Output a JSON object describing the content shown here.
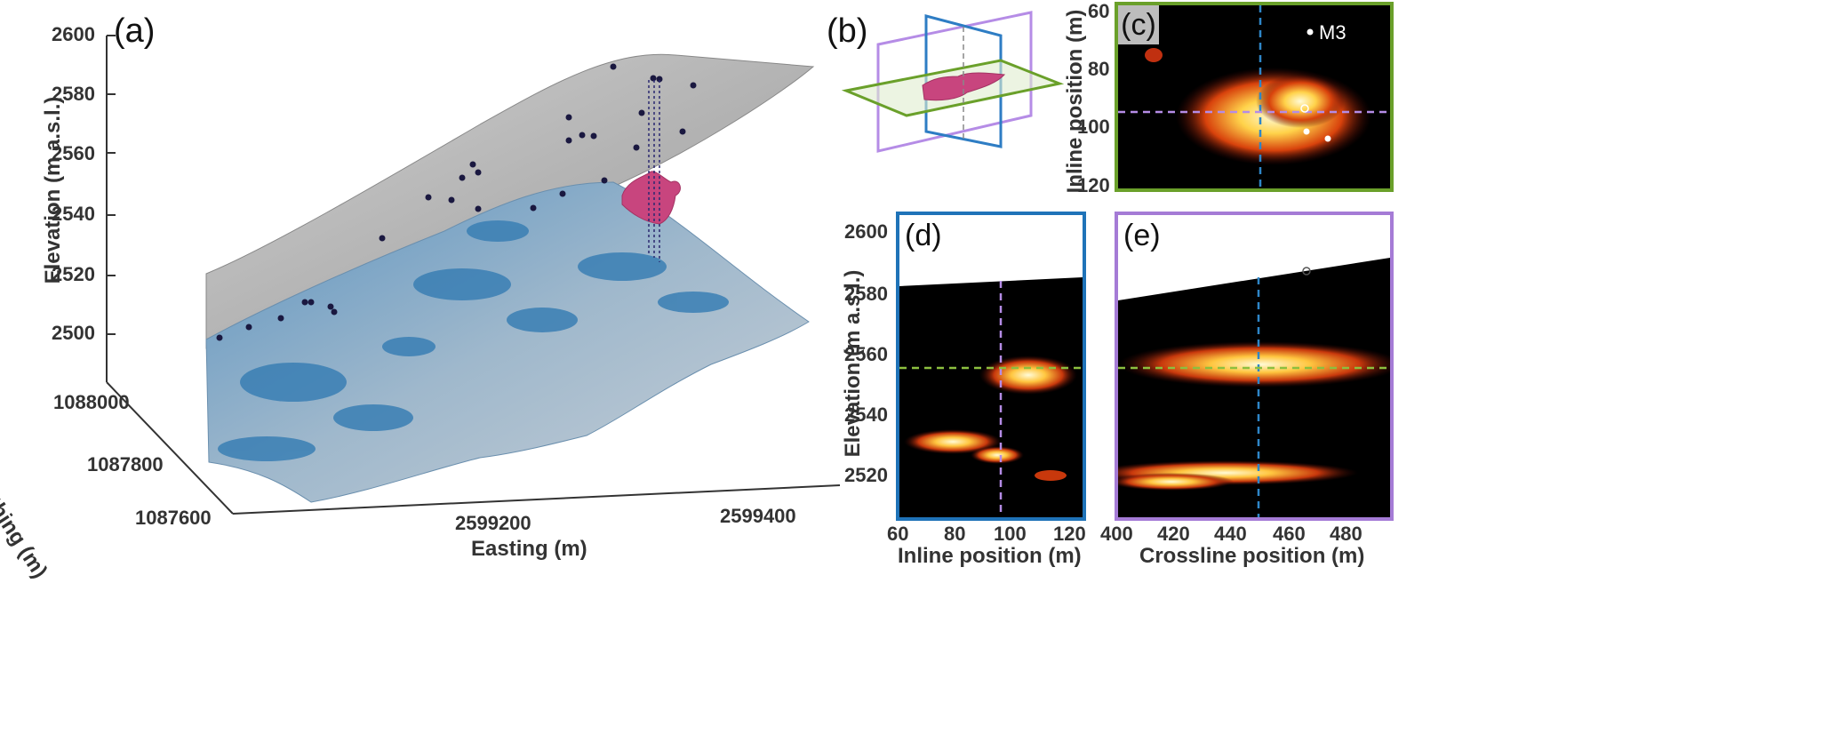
{
  "panels": {
    "a": {
      "letter": "(a)",
      "z_label": "Elevation (m a.s.l.)",
      "z_ticks": [
        "2600",
        "2580",
        "2560",
        "2540",
        "2520",
        "2500"
      ],
      "y_label": "Northing (m)",
      "y_ticks": [
        "1088000",
        "1087800",
        "1087600"
      ],
      "x_label": "Easting (m)",
      "x_ticks": [
        "2599200",
        "2599400"
      ]
    },
    "b": {
      "letter": "(b)"
    },
    "c": {
      "letter": "(c)",
      "y_label": "Inline position (m)",
      "y_ticks": [
        "60",
        "80",
        "100",
        "120"
      ],
      "marker_label": "M3",
      "frame_color": "#6aa02a"
    },
    "d": {
      "letter": "(d)",
      "y_label": "Elevation (m a.s.l.)",
      "y_ticks": [
        "2600",
        "2580",
        "2560",
        "2540",
        "2520"
      ],
      "x_label": "Inline position (m)",
      "x_ticks": [
        "60",
        "80",
        "100",
        "120"
      ],
      "frame_color": "#1f73b8"
    },
    "e": {
      "letter": "(e)",
      "x_label": "Crossline position (m)",
      "x_ticks": [
        "400",
        "420",
        "440",
        "460",
        "480"
      ],
      "frame_color": "#a57bd6"
    }
  },
  "colors": {
    "terrain_grey": "#b9b9b9",
    "glacier_blue": "#3a7fb4",
    "void_magenta": "#c8457e",
    "station_dot": "#1a1840",
    "heat_hot": "#fff2b0",
    "heat_mid": "#e05010",
    "heat_low": "#6a0b0b",
    "crosshair_green": "#8cbf3f",
    "crosshair_blue": "#2e86c8",
    "crosshair_purple": "#b58ce6"
  }
}
